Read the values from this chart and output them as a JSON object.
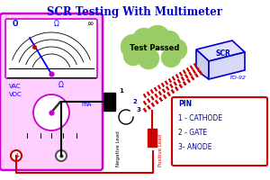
{
  "title": "SCR Testing With Multimeter",
  "title_color": "#0000cc",
  "title_fontsize": 8.5,
  "bg_color": "#ffffff",
  "test_passed_text": "Test Passed",
  "scr_label": "SCR",
  "to92_label": "TO-92",
  "pin_info": [
    "PIN",
    "1 - CATHODE",
    "2 - GATE",
    "3- ANODE"
  ],
  "vac_label": "VAC",
  "vdc_label": "VDC",
  "ohm_label": "Ω",
  "ma_label": "mA",
  "neg_lead": "Negative Lead",
  "pos_lead": "Positive Lead",
  "multimeter_border": "#cc00cc",
  "cloud_color": "#99cc66",
  "wire_red": "#cc0000",
  "wire_black": "#000000",
  "pin_box_border": "#cc0000",
  "pin_text_color": "#0000cc",
  "scr_border": "#0000cc"
}
